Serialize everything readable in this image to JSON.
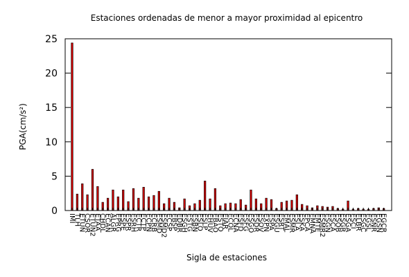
{
  "chart_data": {
    "type": "bar",
    "title": "Estaciones ordenadas de menor a mayor proximidad al epicentro",
    "xlabel": "Sigla de estaciones",
    "ylabel": "PGA(cm/s²)",
    "ylim": [
      0,
      25
    ],
    "yticks": [
      0,
      5,
      10,
      15,
      20,
      25
    ],
    "grid": false,
    "legend": "none",
    "bar_color": "#cc0000",
    "categories": [
      "IMI",
      "TLH",
      "ETUN",
      "CSOR",
      "ETUN2",
      "ETAA",
      "CHDL",
      "ECAN",
      "ALGR",
      "EPRG",
      "ESPE",
      "ESPR",
      "ESRH",
      "ECTR",
      "ECTP",
      "ECPN",
      "ECRB",
      "ESMD",
      "ESMD2",
      "ECSP",
      "EBSP",
      "EDBR",
      "ESGH",
      "ESTG",
      "ESBN",
      "ESLO",
      "ESLP",
      "EHUV",
      "EBAO",
      "ESTO",
      "EIAR",
      "ECOL",
      "ECNA",
      "ESFD",
      "ESFG",
      "ESGO",
      "ESDR",
      "ESOV",
      "EXPN",
      "ESPA",
      "ESGU",
      "ESRT",
      "EMAL",
      "ESMR",
      "ESLA",
      "ESKA",
      "EPCA",
      "EMNA",
      "EMTE",
      "ESMR2",
      "ESGN",
      "ESCA",
      "ESOB",
      "ESGR",
      "ESGA",
      "ESCI",
      "ELBR",
      "ESGC",
      "EGSL",
      "ESNR",
      "EGSN",
      "EGCR"
    ],
    "values": [
      24.4,
      2.4,
      3.9,
      2.3,
      6.0,
      3.5,
      1.2,
      1.8,
      3.0,
      2.0,
      3.0,
      1.3,
      3.2,
      1.8,
      3.4,
      2.0,
      2.2,
      2.8,
      1.0,
      1.8,
      1.2,
      0.4,
      1.7,
      0.7,
      1.0,
      1.5,
      4.3,
      1.7,
      3.2,
      0.7,
      1.0,
      1.1,
      1.0,
      1.6,
      0.8,
      3.0,
      1.7,
      1.0,
      1.8,
      1.6,
      0.3,
      1.2,
      1.4,
      1.5,
      2.3,
      0.9,
      0.7,
      0.4,
      0.7,
      0.6,
      0.5,
      0.6,
      0.3,
      0.2,
      1.4,
      0.2,
      0.3,
      0.2,
      0.2,
      0.3,
      0.4,
      0.3
    ]
  }
}
